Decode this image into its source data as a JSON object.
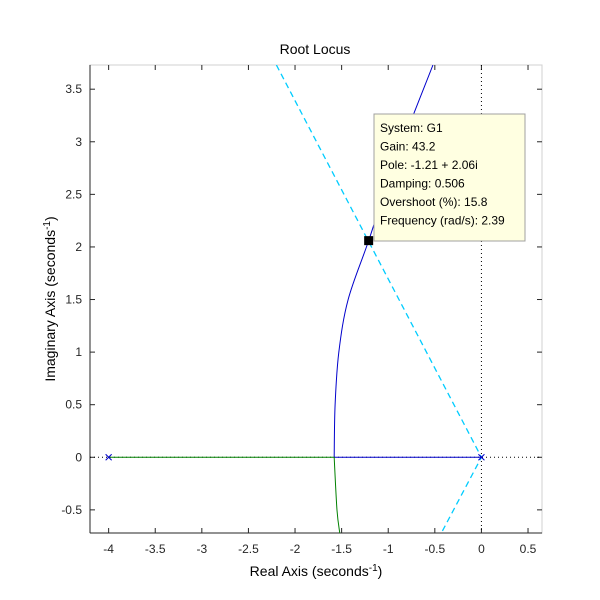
{
  "chart_data": {
    "type": "line",
    "title": "Root Locus",
    "xlabel": {
      "text": "Real Axis (seconds",
      "sup": "-1",
      "suffix": ")"
    },
    "ylabel": {
      "text": "Imaginary Axis (seconds",
      "sup": "-1",
      "suffix": ")"
    },
    "xlim": [
      -4.2,
      0.65
    ],
    "ylim": [
      -0.72,
      3.73
    ],
    "xticks": [
      -4,
      -3.5,
      -3,
      -2.5,
      -2,
      -1.5,
      -1,
      -0.5,
      0,
      0.5
    ],
    "xtick_labels": [
      "-4",
      "-3.5",
      "-3",
      "-2.5",
      "-2",
      "-1.5",
      "-1",
      "-0.5",
      "0",
      "0.5"
    ],
    "yticks": [
      -0.5,
      0,
      0.5,
      1,
      1.5,
      2,
      2.5,
      3,
      3.5
    ],
    "ytick_labels": [
      "-0.5",
      "0",
      "0.5",
      "1",
      "1.5",
      "2",
      "2.5",
      "3",
      "3.5"
    ],
    "grid": false,
    "colors": {
      "branch_blue": "#0000cc",
      "branch_green": "#008000",
      "damping_line": "#00ccff",
      "axis": "#262626",
      "box": "#d0d0d0",
      "tooltip_bg": "#ffffe1",
      "tooltip_border": "#a0a0a0"
    },
    "series": [
      {
        "color": "#0000cc",
        "points": [
          [
            0,
            0
          ],
          [
            -1.58,
            0
          ]
        ]
      },
      {
        "color": "#0000cc",
        "points": [
          [
            -1.58,
            0
          ],
          [
            -1.57,
            0.5
          ],
          [
            -1.53,
            1.0
          ],
          [
            -1.43,
            1.5
          ],
          [
            -1.21,
            2.06
          ],
          [
            -0.95,
            2.75
          ],
          [
            -0.52,
            3.73
          ]
        ]
      },
      {
        "color": "#008000",
        "points": [
          [
            -4,
            0
          ],
          [
            -1.58,
            0
          ]
        ]
      },
      {
        "color": "#008000",
        "points": [
          [
            -1.58,
            0
          ],
          [
            -1.55,
            -0.5
          ],
          [
            -1.52,
            -0.72
          ]
        ]
      }
    ],
    "damping_line": {
      "color": "#00ccff",
      "dash": true,
      "points": [
        [
          -2.2,
          3.73
        ],
        [
          0,
          0
        ],
        [
          -0.43,
          -0.72
        ]
      ]
    },
    "poles": [
      [
        0,
        0
      ],
      [
        -4,
        0
      ]
    ],
    "reference_lines": {
      "x": 0,
      "y": 0
    },
    "marker": {
      "x": -1.21,
      "y": 2.06
    },
    "datatip": {
      "lines": [
        "System: G1",
        "Gain: 43.2",
        "Pole: -1.21 + 2.06i",
        "Damping: 0.506",
        "Overshoot (%): 15.8",
        "Frequency (rad/s): 2.39"
      ]
    }
  }
}
